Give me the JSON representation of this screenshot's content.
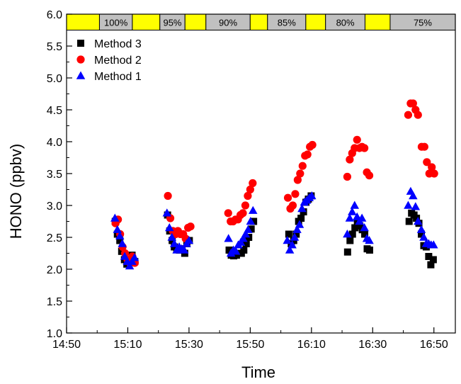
{
  "chart_data": {
    "type": "scatter",
    "xlabel": "Time",
    "ylabel": "HONO (ppbv)",
    "x_unit": "minutes after 14:50",
    "xlim": [
      0,
      127
    ],
    "ylim": [
      1.0,
      6.0
    ],
    "x_ticks": [
      {
        "value": 0,
        "label": "14:50"
      },
      {
        "value": 20,
        "label": "15:10"
      },
      {
        "value": 40,
        "label": "15:30"
      },
      {
        "value": 60,
        "label": "15:50"
      },
      {
        "value": 80,
        "label": "16:10"
      },
      {
        "value": 100,
        "label": "16:30"
      },
      {
        "value": 120,
        "label": "16:50"
      }
    ],
    "y_ticks": [
      "1.0",
      "1.5",
      "2.0",
      "2.5",
      "3.0",
      "3.5",
      "4.0",
      "4.5",
      "5.0",
      "5.5",
      "6.0"
    ],
    "legend_position": "top-left",
    "humidity_bar": [
      {
        "from": 0,
        "to": 5.5,
        "label": "",
        "color": "#ffff00"
      },
      {
        "from": 5.5,
        "to": 11,
        "label": "100%",
        "color": "#c0c0c0"
      },
      {
        "from": 11,
        "to": 15.6,
        "label": "",
        "color": "#ffff00"
      },
      {
        "from": 15.6,
        "to": 19.8,
        "label": "95%",
        "color": "#c0c0c0"
      },
      {
        "from": 19.8,
        "to": 23.3,
        "label": "",
        "color": "#ffff00"
      },
      {
        "from": 23.3,
        "to": 30.7,
        "label": "90%",
        "color": "#c0c0c0"
      },
      {
        "from": 30.7,
        "to": 33.6,
        "label": "",
        "color": "#ffff00"
      },
      {
        "from": 33.6,
        "to": 40.0,
        "label": "85%",
        "color": "#c0c0c0"
      },
      {
        "from": 40.0,
        "to": 43.3,
        "label": "",
        "color": "#ffff00"
      },
      {
        "from": 43.3,
        "to": 49.9,
        "label": "80%",
        "color": "#c0c0c0"
      },
      {
        "from": 49.9,
        "to": 54.1,
        "label": "",
        "color": "#ffff00"
      },
      {
        "from": 54.1,
        "to": 65.0,
        "label": "75%",
        "color": "#c0c0c0"
      }
    ],
    "series": [
      {
        "name": "Method 3",
        "color": "#000000",
        "marker": "square",
        "points": [
          [
            15.9,
            2.75
          ],
          [
            16.6,
            2.55
          ],
          [
            17.4,
            2.45
          ],
          [
            18.0,
            2.28
          ],
          [
            18.9,
            2.15
          ],
          [
            19.7,
            2.08
          ],
          [
            20.5,
            2.1
          ],
          [
            21.4,
            2.22
          ],
          [
            22.3,
            2.12
          ],
          [
            33.0,
            2.85
          ],
          [
            33.7,
            2.6
          ],
          [
            34.5,
            2.45
          ],
          [
            35.2,
            2.35
          ],
          [
            36.0,
            2.32
          ],
          [
            36.9,
            2.3
          ],
          [
            37.7,
            2.32
          ],
          [
            38.6,
            2.25
          ],
          [
            39.3,
            2.4
          ],
          [
            40.1,
            2.45
          ],
          [
            53.1,
            2.3
          ],
          [
            53.8,
            2.22
          ],
          [
            54.6,
            2.21
          ],
          [
            55.5,
            2.22
          ],
          [
            56.3,
            2.25
          ],
          [
            57.1,
            2.25
          ],
          [
            57.9,
            2.3
          ],
          [
            58.7,
            2.4
          ],
          [
            59.5,
            2.5
          ],
          [
            60.3,
            2.63
          ],
          [
            61.1,
            2.75
          ],
          [
            72.6,
            2.55
          ],
          [
            73.4,
            2.4
          ],
          [
            74.2,
            2.45
          ],
          [
            75.0,
            2.55
          ],
          [
            75.8,
            2.75
          ],
          [
            76.6,
            2.8
          ],
          [
            77.4,
            2.9
          ],
          [
            78.2,
            3.05
          ],
          [
            79.0,
            3.1
          ],
          [
            79.9,
            3.15
          ],
          [
            91.8,
            2.27
          ],
          [
            92.6,
            2.45
          ],
          [
            93.4,
            2.55
          ],
          [
            94.2,
            2.65
          ],
          [
            95.0,
            2.72
          ],
          [
            95.8,
            2.68
          ],
          [
            96.6,
            2.62
          ],
          [
            97.4,
            2.55
          ],
          [
            98.2,
            2.32
          ],
          [
            99.0,
            2.3
          ],
          [
            111.9,
            2.75
          ],
          [
            112.7,
            2.88
          ],
          [
            113.5,
            2.85
          ],
          [
            114.3,
            2.8
          ],
          [
            115.1,
            2.72
          ],
          [
            115.9,
            2.55
          ],
          [
            116.7,
            2.37
          ],
          [
            117.5,
            2.35
          ],
          [
            118.3,
            2.2
          ],
          [
            119.0,
            2.07
          ],
          [
            119.8,
            2.15
          ]
        ]
      },
      {
        "name": "Method 2",
        "color": "#ff0000",
        "marker": "circle",
        "points": [
          [
            16.0,
            2.72
          ],
          [
            16.8,
            2.78
          ],
          [
            17.5,
            2.55
          ],
          [
            18.3,
            2.35
          ],
          [
            19.1,
            2.25
          ],
          [
            19.9,
            2.15
          ],
          [
            20.7,
            2.1
          ],
          [
            21.5,
            2.2
          ],
          [
            22.3,
            2.1
          ],
          [
            33.1,
            3.15
          ],
          [
            33.9,
            2.8
          ],
          [
            34.7,
            2.6
          ],
          [
            35.6,
            2.55
          ],
          [
            36.4,
            2.6
          ],
          [
            37.2,
            2.55
          ],
          [
            38.1,
            2.55
          ],
          [
            38.9,
            2.48
          ],
          [
            39.7,
            2.65
          ],
          [
            40.5,
            2.67
          ],
          [
            52.8,
            2.88
          ],
          [
            53.6,
            2.75
          ],
          [
            54.4,
            2.75
          ],
          [
            55.2,
            2.78
          ],
          [
            56.0,
            2.78
          ],
          [
            56.8,
            2.85
          ],
          [
            57.6,
            2.88
          ],
          [
            58.4,
            3.0
          ],
          [
            59.2,
            3.15
          ],
          [
            60.0,
            3.25
          ],
          [
            60.8,
            3.35
          ],
          [
            72.3,
            3.12
          ],
          [
            73.1,
            2.95
          ],
          [
            73.9,
            3.0
          ],
          [
            74.7,
            3.18
          ],
          [
            75.5,
            3.4
          ],
          [
            76.3,
            3.5
          ],
          [
            77.1,
            3.62
          ],
          [
            77.9,
            3.78
          ],
          [
            78.7,
            3.8
          ],
          [
            79.5,
            3.92
          ],
          [
            80.3,
            3.95
          ],
          [
            91.7,
            3.45
          ],
          [
            92.5,
            3.72
          ],
          [
            93.3,
            3.82
          ],
          [
            94.1,
            3.9
          ],
          [
            94.9,
            4.03
          ],
          [
            95.7,
            3.9
          ],
          [
            96.5,
            3.92
          ],
          [
            97.3,
            3.9
          ],
          [
            98.1,
            3.52
          ],
          [
            98.9,
            3.47
          ],
          [
            111.6,
            4.42
          ],
          [
            112.4,
            4.6
          ],
          [
            113.2,
            4.6
          ],
          [
            114.0,
            4.5
          ],
          [
            114.8,
            4.42
          ],
          [
            116.0,
            3.92
          ],
          [
            116.9,
            3.92
          ],
          [
            117.7,
            3.68
          ],
          [
            118.5,
            3.5
          ],
          [
            119.3,
            3.6
          ],
          [
            120.1,
            3.5
          ]
        ]
      },
      {
        "name": "Method 1",
        "color": "#0000ff",
        "marker": "triangle",
        "points": [
          [
            15.8,
            2.8
          ],
          [
            16.6,
            2.62
          ],
          [
            17.4,
            2.52
          ],
          [
            18.2,
            2.4
          ],
          [
            19.0,
            2.2
          ],
          [
            19.8,
            2.12
          ],
          [
            20.6,
            2.05
          ],
          [
            21.4,
            2.12
          ],
          [
            22.2,
            2.18
          ],
          [
            32.8,
            2.88
          ],
          [
            33.6,
            2.65
          ],
          [
            34.4,
            2.5
          ],
          [
            35.2,
            2.4
          ],
          [
            36.0,
            2.3
          ],
          [
            36.8,
            2.35
          ],
          [
            37.6,
            2.32
          ],
          [
            38.4,
            2.3
          ],
          [
            39.2,
            2.4
          ],
          [
            40.0,
            2.45
          ],
          [
            52.9,
            2.48
          ],
          [
            53.7,
            2.25
          ],
          [
            54.5,
            2.3
          ],
          [
            55.3,
            2.28
          ],
          [
            56.1,
            2.38
          ],
          [
            56.9,
            2.42
          ],
          [
            57.7,
            2.48
          ],
          [
            58.5,
            2.55
          ],
          [
            59.3,
            2.62
          ],
          [
            60.1,
            2.75
          ],
          [
            60.9,
            2.92
          ],
          [
            72.1,
            2.45
          ],
          [
            72.9,
            2.3
          ],
          [
            73.7,
            2.38
          ],
          [
            74.5,
            2.5
          ],
          [
            75.3,
            2.62
          ],
          [
            76.1,
            2.7
          ],
          [
            76.9,
            2.95
          ],
          [
            77.7,
            3.05
          ],
          [
            78.5,
            3.08
          ],
          [
            79.3,
            3.12
          ],
          [
            80.1,
            3.15
          ],
          [
            91.7,
            2.55
          ],
          [
            92.5,
            2.8
          ],
          [
            93.3,
            2.9
          ],
          [
            94.1,
            3.0
          ],
          [
            94.9,
            2.82
          ],
          [
            95.7,
            2.75
          ],
          [
            96.5,
            2.8
          ],
          [
            97.3,
            2.65
          ],
          [
            98.1,
            2.48
          ],
          [
            98.9,
            2.45
          ],
          [
            111.6,
            3.0
          ],
          [
            112.4,
            3.22
          ],
          [
            113.2,
            3.15
          ],
          [
            114.0,
            2.98
          ],
          [
            114.8,
            2.75
          ],
          [
            115.9,
            2.62
          ],
          [
            116.7,
            2.5
          ],
          [
            117.5,
            2.4
          ],
          [
            118.3,
            2.4
          ],
          [
            119.1,
            2.38
          ],
          [
            119.9,
            2.38
          ]
        ]
      }
    ]
  }
}
